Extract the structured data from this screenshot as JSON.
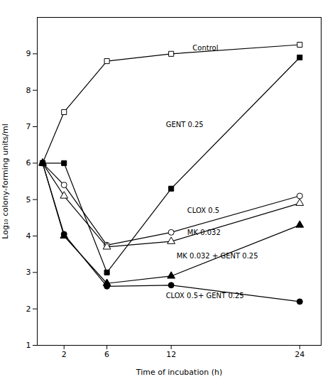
{
  "chart_data": {
    "type": "line",
    "x": [
      0,
      2,
      6,
      12,
      24
    ],
    "series": [
      {
        "name": "Control",
        "values": [
          6.0,
          7.4,
          8.8,
          9.0,
          9.25
        ],
        "marker": "open-square",
        "color": "black",
        "line_style": "solid"
      },
      {
        "name": "GENT 0.25",
        "values": [
          6.0,
          6.0,
          3.0,
          5.3,
          8.9
        ],
        "marker": "filled-square",
        "color": "black",
        "line_style": "solid"
      },
      {
        "name": "CLOX 0.5",
        "values": [
          6.0,
          5.4,
          3.75,
          4.1,
          5.1
        ],
        "marker": "open-circle",
        "color": "black",
        "line_style": "solid"
      },
      {
        "name": "MK 0.032",
        "values": [
          6.0,
          5.1,
          3.7,
          3.85,
          4.9
        ],
        "marker": "open-triangle",
        "color": "black",
        "line_style": "solid"
      },
      {
        "name": "MK 0.032 + GENT 0.25",
        "values": [
          6.0,
          4.0,
          2.7,
          2.9,
          4.3
        ],
        "marker": "filled-triangle",
        "color": "black",
        "line_style": "solid"
      },
      {
        "name": "CLOX 0.5+ GENT 0.25",
        "values": [
          6.0,
          4.05,
          2.62,
          2.65,
          2.2
        ],
        "marker": "filled-circle",
        "color": "black",
        "line_style": "solid"
      }
    ],
    "annotations": [
      {
        "text": "Control",
        "x": 14.0,
        "y": 9.15
      },
      {
        "text": "GENT 0.25",
        "x": 11.5,
        "y": 7.05
      },
      {
        "text": "CLOX 0.5",
        "x": 13.5,
        "y": 4.7
      },
      {
        "text": "MK 0.032",
        "x": 13.5,
        "y": 4.1
      },
      {
        "text": "MK 0.032 + GENT 0.25",
        "x": 12.5,
        "y": 3.45
      },
      {
        "text": "CLOX 0.5+ GENT 0.25",
        "x": 11.5,
        "y": 2.35
      }
    ],
    "xlabel": "Time of incubation (h)",
    "ylabel": "Log₁₀ colony-forming units/ml",
    "xlim": [
      -0.5,
      26
    ],
    "ylim": [
      1,
      10
    ],
    "xticks": [
      2,
      6,
      12,
      24
    ],
    "yticks": [
      1,
      2,
      3,
      4,
      5,
      6,
      7,
      8,
      9
    ],
    "grid": false
  }
}
